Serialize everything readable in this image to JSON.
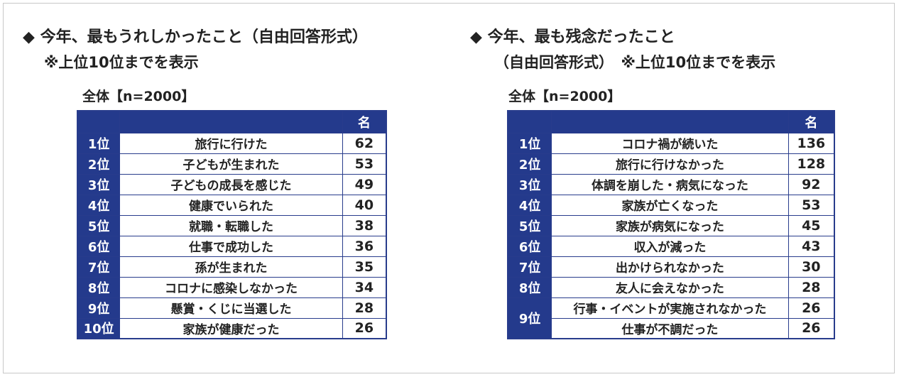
{
  "left": {
    "title": "◆ 今年、最もうれしかったこと（自由回答形式）",
    "note": "※上位10位までを表示",
    "sample": "全体【n=2000】",
    "unit_header": "名",
    "rows": [
      {
        "rank": "1位",
        "item": "旅行に行けた",
        "count": "62"
      },
      {
        "rank": "2位",
        "item": "子どもが生まれた",
        "count": "53"
      },
      {
        "rank": "3位",
        "item": "子どもの成長を感じた",
        "count": "49"
      },
      {
        "rank": "4位",
        "item": "健康でいられた",
        "count": "40"
      },
      {
        "rank": "5位",
        "item": "就職・転職した",
        "count": "38"
      },
      {
        "rank": "6位",
        "item": "仕事で成功した",
        "count": "36"
      },
      {
        "rank": "7位",
        "item": "孫が生まれた",
        "count": "35"
      },
      {
        "rank": "8位",
        "item": "コロナに感染しなかった",
        "count": "34"
      },
      {
        "rank": "9位",
        "item": "懸賞・くじに当選した",
        "count": "28"
      },
      {
        "rank": "10位",
        "item": "家族が健康だった",
        "count": "26"
      }
    ]
  },
  "right": {
    "title": "◆ 今年、最も残念だったこと",
    "title_line2": "（自由回答形式）　※上位10位までを表示",
    "sample": "全体【n=2000】",
    "unit_header": "名",
    "rows": [
      {
        "rank": "1位",
        "item": "コロナ禍が続いた",
        "count": "136"
      },
      {
        "rank": "2位",
        "item": "旅行に行けなかった",
        "count": "128"
      },
      {
        "rank": "3位",
        "item": "体調を崩した・病気になった",
        "count": "92"
      },
      {
        "rank": "4位",
        "item": "家族が亡くなった",
        "count": "53"
      },
      {
        "rank": "5位",
        "item": "家族が病気になった",
        "count": "45"
      },
      {
        "rank": "6位",
        "item": "収入が減った",
        "count": "43"
      },
      {
        "rank": "7位",
        "item": "出かけられなかった",
        "count": "30"
      },
      {
        "rank": "8位",
        "item": "友人に会えなかった",
        "count": "28"
      }
    ],
    "tie": {
      "rank": "9位",
      "items": [
        {
          "item": "行事・イベントが実施されなかった",
          "count": "26"
        },
        {
          "item": "仕事が不調だった",
          "count": "26"
        }
      ]
    }
  }
}
